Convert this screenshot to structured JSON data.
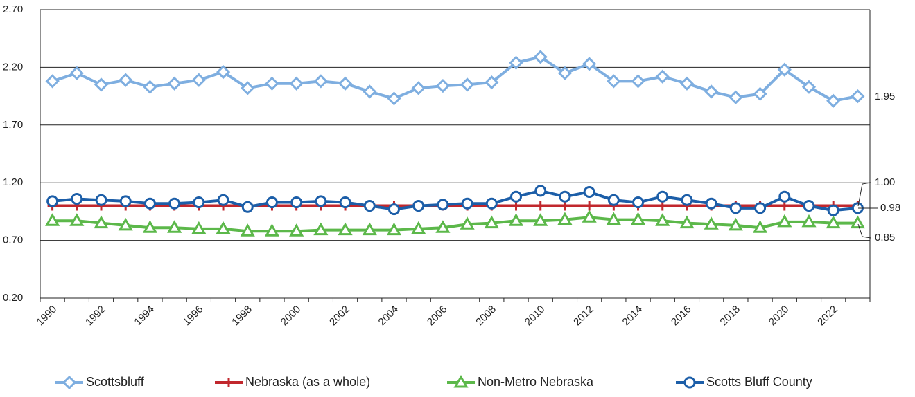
{
  "chart_data": {
    "type": "line",
    "categories": [
      "1990",
      null,
      "1992",
      null,
      "1994",
      null,
      "1996",
      null,
      "1998",
      null,
      "2000",
      null,
      "2002",
      null,
      "2004",
      null,
      "2006",
      null,
      "2008",
      null,
      "2010",
      null,
      "2012",
      null,
      "2014",
      null,
      "2016",
      null,
      "2018",
      null,
      "2020",
      null,
      "2022",
      null
    ],
    "series": [
      {
        "name": "Scottsbluff",
        "color": "#7eaee0",
        "marker": "diamond",
        "values": [
          2.08,
          2.15,
          2.05,
          2.09,
          2.03,
          2.06,
          2.09,
          2.16,
          2.02,
          2.06,
          2.06,
          2.08,
          2.06,
          1.99,
          1.93,
          2.02,
          2.04,
          2.05,
          2.07,
          2.24,
          2.29,
          2.15,
          2.23,
          2.08,
          2.08,
          2.12,
          2.06,
          1.99,
          1.94,
          1.97,
          2.18,
          2.03,
          1.91,
          1.95
        ]
      },
      {
        "name": "Nebraska (as a whole)",
        "color": "#c1272d",
        "marker": "plus",
        "values": [
          1,
          1,
          1,
          1,
          1,
          1,
          1,
          1,
          1,
          1,
          1,
          1,
          1,
          1,
          1,
          1,
          1,
          1,
          1,
          1,
          1,
          1,
          1,
          1,
          1,
          1,
          1,
          1,
          1,
          1,
          1,
          1,
          1,
          1
        ]
      },
      {
        "name": "Non-Metro Nebraska",
        "color": "#5cb84a",
        "marker": "triangle",
        "values": [
          0.87,
          0.87,
          0.85,
          0.83,
          0.81,
          0.81,
          0.8,
          0.8,
          0.78,
          0.78,
          0.78,
          0.79,
          0.79,
          0.79,
          0.79,
          0.8,
          0.81,
          0.84,
          0.85,
          0.87,
          0.87,
          0.88,
          0.9,
          0.88,
          0.88,
          0.87,
          0.85,
          0.84,
          0.83,
          0.81,
          0.86,
          0.86,
          0.85,
          0.85
        ]
      },
      {
        "name": "Scotts Bluff County",
        "color": "#1c5ea8",
        "marker": "circle",
        "values": [
          1.04,
          1.06,
          1.05,
          1.04,
          1.02,
          1.02,
          1.03,
          1.05,
          0.99,
          1.03,
          1.03,
          1.04,
          1.03,
          1.0,
          0.97,
          1.0,
          1.01,
          1.02,
          1.02,
          1.08,
          1.13,
          1.08,
          1.12,
          1.05,
          1.03,
          1.08,
          1.05,
          1.02,
          0.98,
          0.98,
          1.08,
          1.0,
          0.96,
          0.98
        ]
      }
    ],
    "annotations": [
      "1.95",
      "1.00",
      "0.98",
      "0.85"
    ],
    "ylim": [
      0.2,
      2.7
    ],
    "yticks": [
      {
        "value": 0.2,
        "label": "0.20"
      },
      {
        "value": 0.7,
        "label": "0.70"
      },
      {
        "value": 1.2,
        "label": "1.20"
      },
      {
        "value": 1.7,
        "label": "1.70"
      },
      {
        "value": 2.2,
        "label": "2.20"
      },
      {
        "value": 2.7,
        "label": "2.70"
      }
    ],
    "grid": true,
    "legend": "bottom"
  }
}
